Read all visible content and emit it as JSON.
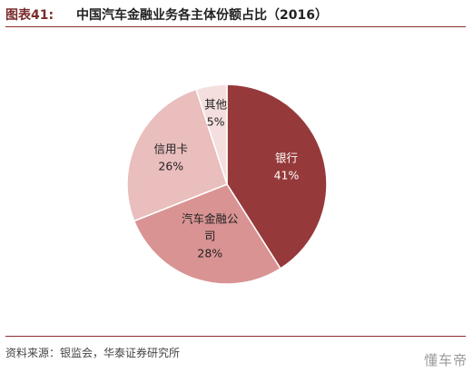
{
  "header": {
    "figure_label": "图表41:",
    "title": "中国汽车金融业务各主体份额占比（2016）"
  },
  "chart_data": {
    "type": "pie",
    "title": "中国汽车金融业务各主体份额占比（2016）",
    "slices": [
      {
        "label": "银行",
        "value": 41,
        "display": "41%",
        "color": "#96393a",
        "text_color": "#ffffff"
      },
      {
        "label": "汽车金融公司",
        "label_lines": [
          "汽车金融公",
          "司"
        ],
        "value": 28,
        "display": "28%",
        "color": "#d99393",
        "text_color": "#222222"
      },
      {
        "label": "信用卡",
        "value": 26,
        "display": "26%",
        "color": "#e9bebd",
        "text_color": "#222222"
      },
      {
        "label": "其他",
        "value": 5,
        "display": "5%",
        "color": "#f4dfde",
        "text_color": "#222222"
      }
    ],
    "start_angle_deg": 0,
    "direction": "clockwise",
    "legend": "none"
  },
  "footer": {
    "source": "资料来源：银监会，华泰证券研究所",
    "watermark": "懂车帝"
  }
}
